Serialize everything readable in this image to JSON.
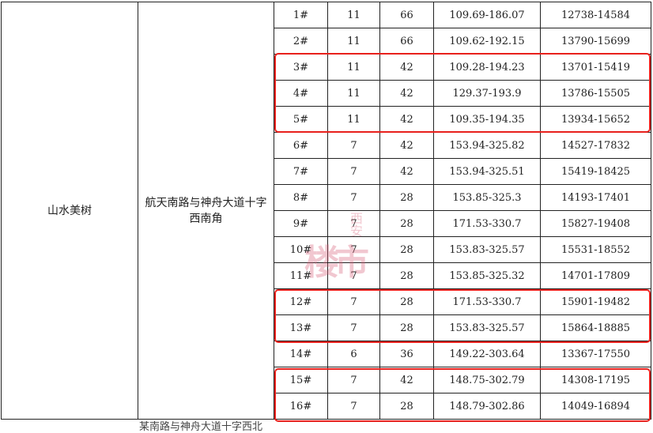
{
  "project": "山水美树",
  "location": "航天南路与神舟大道十字西南角",
  "next_row_partial_text": "某南路与神舟大道十字西北",
  "watermark": {
    "big": "楼市",
    "small": "西安"
  },
  "highlight_color": "#e8201c",
  "rows": [
    {
      "building": "1#",
      "floors": "11",
      "units": "66",
      "area": "109.69-186.07",
      "price": "12738-14584"
    },
    {
      "building": "2#",
      "floors": "11",
      "units": "66",
      "area": "109.62-192.15",
      "price": "13790-15699"
    },
    {
      "building": "3#",
      "floors": "11",
      "units": "42",
      "area": "109.28-194.23",
      "price": "13701-15419"
    },
    {
      "building": "4#",
      "floors": "11",
      "units": "42",
      "area": "129.37-193.9",
      "price": "13786-15505"
    },
    {
      "building": "5#",
      "floors": "11",
      "units": "42",
      "area": "109.35-194.35",
      "price": "13934-15652"
    },
    {
      "building": "6#",
      "floors": "7",
      "units": "42",
      "area": "153.94-325.82",
      "price": "14527-17832"
    },
    {
      "building": "7#",
      "floors": "7",
      "units": "42",
      "area": "153.94-325.51",
      "price": "15419-18425"
    },
    {
      "building": "8#",
      "floors": "7",
      "units": "28",
      "area": "153.85-325.3",
      "price": "14193-17401"
    },
    {
      "building": "9#",
      "floors": "7",
      "units": "28",
      "area": "171.53-330.7",
      "price": "15827-19408"
    },
    {
      "building": "10#",
      "floors": "7",
      "units": "28",
      "area": "153.83-325.57",
      "price": "15531-18552"
    },
    {
      "building": "11#",
      "floors": "7",
      "units": "28",
      "area": "153.85-325.32",
      "price": "14701-17809"
    },
    {
      "building": "12#",
      "floors": "7",
      "units": "28",
      "area": "171.53-330.7",
      "price": "15901-19482"
    },
    {
      "building": "13#",
      "floors": "7",
      "units": "28",
      "area": "153.83-325.57",
      "price": "15864-18885"
    },
    {
      "building": "14#",
      "floors": "6",
      "units": "36",
      "area": "149.22-303.64",
      "price": "13367-17550"
    },
    {
      "building": "15#",
      "floors": "7",
      "units": "42",
      "area": "148.75-302.79",
      "price": "14308-17195"
    },
    {
      "building": "16#",
      "floors": "7",
      "units": "28",
      "area": "148.79-302.86",
      "price": "14049-16894"
    }
  ]
}
